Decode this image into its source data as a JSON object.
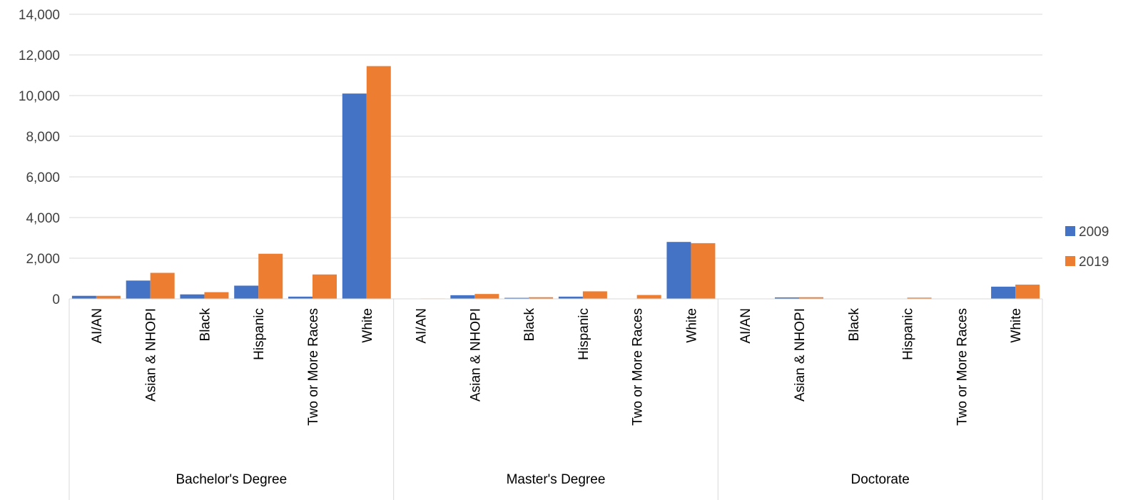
{
  "chart_data": {
    "type": "bar",
    "title": "",
    "xlabel": "",
    "ylabel": "",
    "ylim": [
      0,
      14000
    ],
    "yticks": [
      0,
      2000,
      4000,
      6000,
      8000,
      10000,
      12000,
      14000
    ],
    "ytick_labels": [
      "0",
      "2,000",
      "4,000",
      "6,000",
      "8,000",
      "10,000",
      "12,000",
      "14,000"
    ],
    "grid": true,
    "legend_position": "right",
    "groups": [
      {
        "label": "Bachelor's Degree",
        "categories": [
          "AI/AN",
          "Asian & NHOPI",
          "Black",
          "Hispanic",
          "Two or More Races",
          "White"
        ]
      },
      {
        "label": "Master's Degree",
        "categories": [
          "AI/AN",
          "Asian & NHOPI",
          "Black",
          "Hispanic",
          "Two or More Races",
          "White"
        ]
      },
      {
        "label": "Doctorate",
        "categories": [
          "AI/AN",
          "Asian & NHOPI",
          "Black",
          "Hispanic",
          "Two or More Races",
          "White"
        ]
      }
    ],
    "series": [
      {
        "name": "2009",
        "color": "#4472c4",
        "values": [
          150,
          900,
          220,
          650,
          110,
          10100,
          15,
          180,
          50,
          110,
          10,
          2800,
          5,
          70,
          5,
          15,
          5,
          600
        ]
      },
      {
        "name": "2019",
        "color": "#ed7d31",
        "values": [
          150,
          1280,
          330,
          2220,
          1200,
          11450,
          20,
          240,
          80,
          370,
          190,
          2740,
          5,
          80,
          10,
          60,
          10,
          700
        ]
      }
    ]
  }
}
